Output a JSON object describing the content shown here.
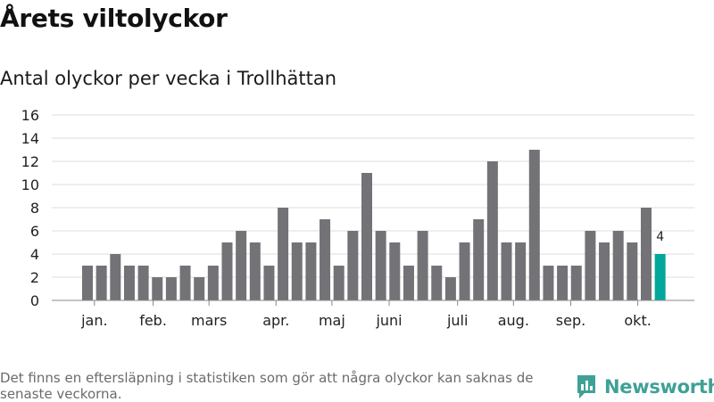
{
  "header": {
    "title": "Årets viltolyckor",
    "subtitle": "Antal olyckor per vecka i Trollhättan"
  },
  "chart_data": {
    "type": "bar",
    "title": "Årets viltolyckor",
    "subtitle": "Antal olyckor per vecka i Trollhättan",
    "xlabel": "",
    "ylabel": "",
    "ylim": [
      0,
      16
    ],
    "yticks": [
      0,
      2,
      4,
      6,
      8,
      10,
      12,
      14,
      16
    ],
    "grid": true,
    "values": [
      3,
      3,
      4,
      3,
      3,
      2,
      2,
      3,
      2,
      3,
      5,
      6,
      5,
      3,
      8,
      5,
      5,
      7,
      3,
      6,
      11,
      6,
      5,
      3,
      6,
      3,
      2,
      5,
      7,
      12,
      5,
      5,
      13,
      3,
      3,
      3,
      6,
      5,
      6,
      5,
      8,
      4
    ],
    "month_ticks": [
      {
        "label": "jan.",
        "week_index": 0.5
      },
      {
        "label": "feb.",
        "week_index": 4.7
      },
      {
        "label": "mars",
        "week_index": 8.7
      },
      {
        "label": "apr.",
        "week_index": 13.5
      },
      {
        "label": "maj",
        "week_index": 17.5
      },
      {
        "label": "juni",
        "week_index": 21.6
      },
      {
        "label": "juli",
        "week_index": 26.5
      },
      {
        "label": "aug.",
        "week_index": 30.5
      },
      {
        "label": "sep.",
        "week_index": 34.6
      },
      {
        "label": "okt.",
        "week_index": 39.4
      }
    ],
    "highlight": {
      "index": 41,
      "label": "4"
    },
    "colors": {
      "bar": "#737277",
      "highlight": "#00a79a",
      "grid": "#dddddd",
      "axis": "#888888"
    }
  },
  "footer": {
    "note": "Det finns en eftersläpning i statistiken som gör att några olyckor kan saknas de senaste veckorna.",
    "brand": "Newsworthy"
  }
}
